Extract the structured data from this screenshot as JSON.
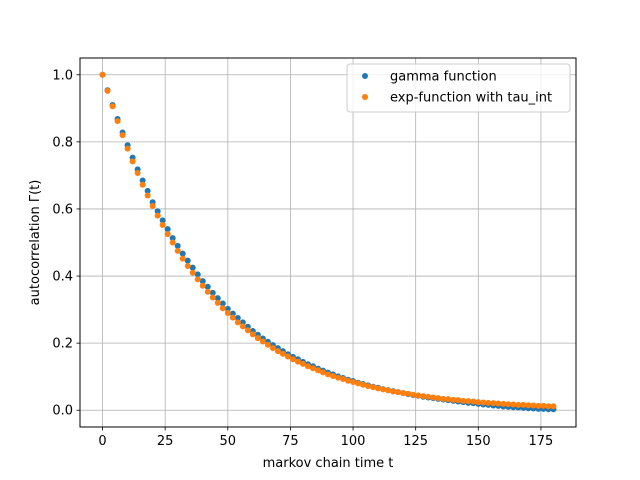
{
  "chart_data": {
    "type": "scatter",
    "xlabel": "markov chain time t",
    "ylabel": "autocorrelation Γ(t)",
    "xlim": [
      -9,
      189
    ],
    "ylim": [
      -0.05,
      1.05
    ],
    "xticks": [
      0,
      25,
      50,
      75,
      100,
      125,
      150,
      175
    ],
    "yticks": [
      0.0,
      0.2,
      0.4,
      0.6,
      0.8,
      1.0
    ],
    "xtick_labels": [
      "0",
      "25",
      "50",
      "75",
      "100",
      "125",
      "150",
      "175"
    ],
    "ytick_labels": [
      "0.0",
      "0.2",
      "0.4",
      "0.6",
      "0.8",
      "1.0"
    ],
    "grid": true,
    "legend_position": "top-right",
    "x": [
      0,
      2,
      4,
      6,
      8,
      10,
      12,
      14,
      16,
      18,
      20,
      22,
      24,
      26,
      28,
      30,
      32,
      34,
      36,
      38,
      40,
      42,
      44,
      46,
      48,
      50,
      52,
      54,
      56,
      58,
      60,
      62,
      64,
      66,
      68,
      70,
      72,
      74,
      76,
      78,
      80,
      82,
      84,
      86,
      88,
      90,
      92,
      94,
      96,
      98,
      100,
      102,
      104,
      106,
      108,
      110,
      112,
      114,
      116,
      118,
      120,
      122,
      124,
      126,
      128,
      130,
      132,
      134,
      136,
      138,
      140,
      142,
      144,
      146,
      148,
      150,
      152,
      154,
      156,
      158,
      160,
      162,
      164,
      166,
      168,
      170,
      172,
      174,
      176,
      178,
      180
    ],
    "series": [
      {
        "name": "gamma function",
        "color": "#1f77b4",
        "values": [
          1.0,
          0.954,
          0.91,
          0.868,
          0.828,
          0.79,
          0.753,
          0.718,
          0.685,
          0.654,
          0.62,
          0.593,
          0.566,
          0.54,
          0.513,
          0.49,
          0.467,
          0.446,
          0.425,
          0.405,
          0.385,
          0.368,
          0.35,
          0.334,
          0.318,
          0.302,
          0.288,
          0.275,
          0.262,
          0.249,
          0.236,
          0.225,
          0.214,
          0.204,
          0.194,
          0.185,
          0.176,
          0.167,
          0.159,
          0.152,
          0.144,
          0.137,
          0.131,
          0.124,
          0.118,
          0.112,
          0.107,
          0.101,
          0.096,
          0.091,
          0.087,
          0.082,
          0.078,
          0.074,
          0.07,
          0.067,
          0.063,
          0.06,
          0.057,
          0.054,
          0.051,
          0.048,
          0.045,
          0.043,
          0.04,
          0.038,
          0.036,
          0.034,
          0.032,
          0.03,
          0.028,
          0.026,
          0.024,
          0.022,
          0.021,
          0.019,
          0.017,
          0.016,
          0.014,
          0.013,
          0.011,
          0.01,
          0.009,
          0.008,
          0.007,
          0.006,
          0.005,
          0.004,
          0.004,
          0.003,
          0.003
        ]
      },
      {
        "name": "exp-function with tau_int",
        "color": "#ff7f0e",
        "values": [
          1.0,
          0.952,
          0.906,
          0.862,
          0.82,
          0.78,
          0.742,
          0.707,
          0.672,
          0.64,
          0.609,
          0.58,
          0.552,
          0.525,
          0.5,
          0.475,
          0.452,
          0.43,
          0.41,
          0.39,
          0.371,
          0.353,
          0.336,
          0.32,
          0.304,
          0.29,
          0.276,
          0.262,
          0.25,
          0.238,
          0.226,
          0.215,
          0.205,
          0.195,
          0.185,
          0.176,
          0.168,
          0.16,
          0.152,
          0.145,
          0.138,
          0.131,
          0.125,
          0.119,
          0.113,
          0.107,
          0.102,
          0.097,
          0.093,
          0.088,
          0.084,
          0.08,
          0.076,
          0.072,
          0.069,
          0.065,
          0.062,
          0.059,
          0.056,
          0.054,
          0.051,
          0.049,
          0.046,
          0.044,
          0.042,
          0.04,
          0.038,
          0.036,
          0.034,
          0.033,
          0.031,
          0.03,
          0.028,
          0.027,
          0.026,
          0.024,
          0.023,
          0.022,
          0.021,
          0.02,
          0.019,
          0.018,
          0.017,
          0.016,
          0.016,
          0.015,
          0.014,
          0.013,
          0.013,
          0.012,
          0.012
        ]
      }
    ]
  }
}
